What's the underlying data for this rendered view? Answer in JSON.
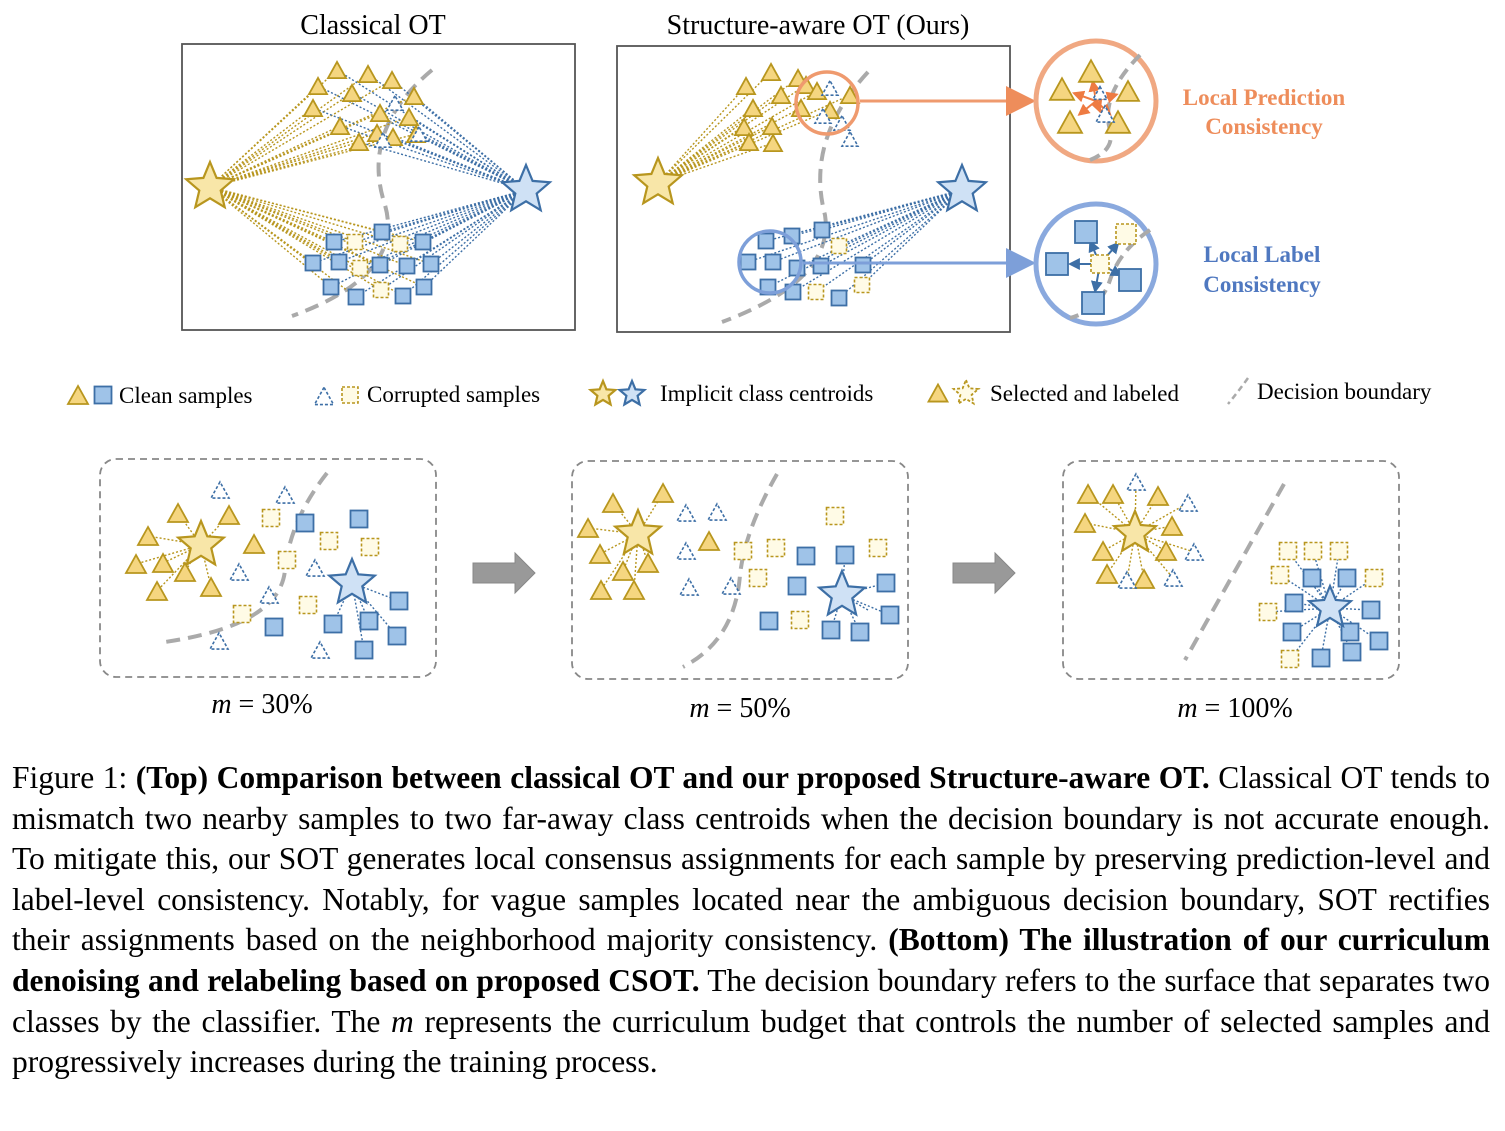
{
  "titles": {
    "classical": "Classical OT",
    "structure_aware": "Structure-aware OT (Ours)"
  },
  "callouts": {
    "prediction": [
      "Local Prediction",
      "Consistency"
    ],
    "label": [
      "Local Label",
      "Consistency"
    ]
  },
  "legend": {
    "clean": "Clean samples",
    "corrupted": "Corrupted samples",
    "centroids": "Implicit class centroids",
    "selected": "Selected and labeled",
    "boundary": "Decision boundary"
  },
  "stages": [
    {
      "var": "m",
      "value": "30%"
    },
    {
      "var": "m",
      "value": "50%"
    },
    {
      "var": "m",
      "value": "100%"
    }
  ],
  "caption": {
    "prefix": "Figure 1: ",
    "bold1": "(Top) Comparison between classical OT and our proposed Structure-aware OT.",
    "text1": " Classical OT tends to mismatch two nearby samples to two far-away class centroids when the decision boundary is not accurate enough. To mitigate this, our SOT generates local consensus assignments for each sample by preserving prediction-level and label-level consistency. Notably, for vague samples located near the ambiguous decision boundary, SOT rectifies their assignments based on the neighborhood majority consistency. ",
    "bold2": "(Bottom) The illustration of our curriculum denoising and relabeling based on proposed CSOT.",
    "text2": " The decision boundary refers to the surface that separates two classes by the classifier. The ",
    "var": "m",
    "text3": " represents the curriculum budget that controls the number of selected samples and progressively increases during the training process."
  },
  "colors": {
    "yellow_fill": "#f5d680",
    "yellow_stroke": "#b8961e",
    "blue_fill": "#9fc3e8",
    "blue_stroke": "#3d6fa6",
    "orange_accent": "#ee8d5b",
    "blue_accent": "#7d9fd9",
    "boundary": "#aaaaaa"
  }
}
